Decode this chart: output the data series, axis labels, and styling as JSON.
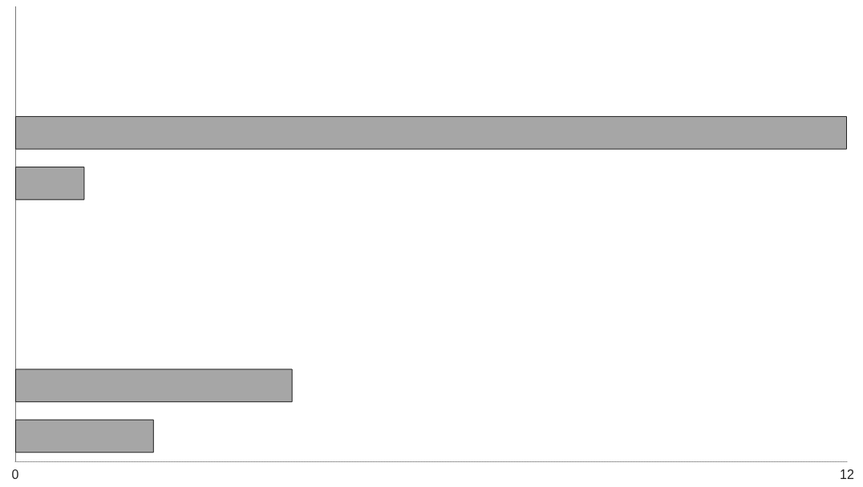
{
  "chart_data": {
    "type": "bar",
    "orientation": "horizontal",
    "categories": [
      null,
      null,
      null,
      null,
      null,
      null,
      null,
      null,
      null
    ],
    "values": [
      null,
      null,
      12,
      1,
      null,
      null,
      null,
      4,
      2
    ],
    "color": "#a6a6a6",
    "xlim": [
      0,
      12
    ],
    "xticks": [
      0,
      12
    ],
    "grid": false
  }
}
